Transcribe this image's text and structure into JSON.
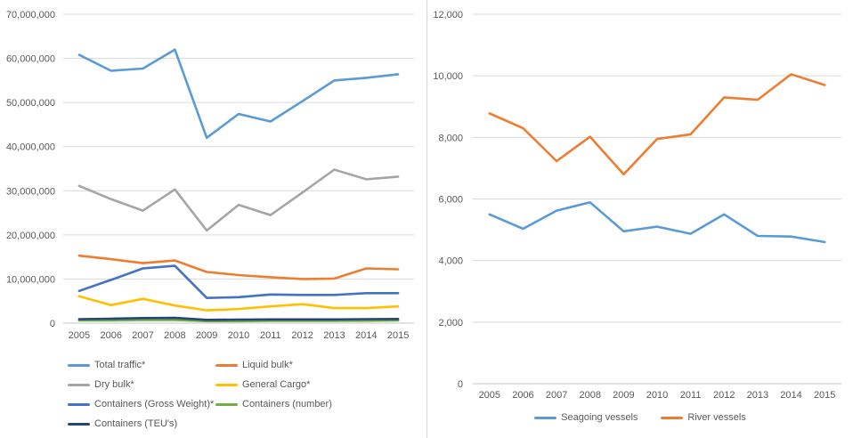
{
  "palette": {
    "background": "#FFFFFF",
    "grid": "#D9D9D9",
    "axis": "#C6C6C6",
    "text": "#595959",
    "divider": "#D9D9D9"
  },
  "chart_data": [
    {
      "type": "line",
      "title": "",
      "categories": [
        "2005",
        "2006",
        "2007",
        "2008",
        "2009",
        "2010",
        "2011",
        "2012",
        "2013",
        "2014",
        "2015"
      ],
      "series": [
        {
          "name": "Total traffic*",
          "color": "#5B9BD5",
          "values": [
            60800000,
            57200000,
            57700000,
            62000000,
            42000000,
            47400000,
            45700000,
            50300000,
            55000000,
            55600000,
            56400000
          ]
        },
        {
          "name": "Liquid bulk*",
          "color": "#ED7D31",
          "values": [
            15300000,
            14500000,
            13600000,
            14200000,
            11600000,
            10900000,
            10400000,
            10000000,
            10100000,
            12400000,
            12200000
          ]
        },
        {
          "name": "Dry bulk*",
          "color": "#A5A5A5",
          "values": [
            31100000,
            28100000,
            25500000,
            30300000,
            21000000,
            26800000,
            24500000,
            29600000,
            34800000,
            32600000,
            33200000
          ]
        },
        {
          "name": "General Cargo*",
          "color": "#FFC000",
          "values": [
            6100000,
            4100000,
            5500000,
            4000000,
            2900000,
            3200000,
            3800000,
            4300000,
            3400000,
            3400000,
            3800000
          ]
        },
        {
          "name": "Containers (Gross Weight)*",
          "color": "#4472C4",
          "values": [
            7300000,
            9800000,
            12400000,
            13000000,
            5700000,
            5900000,
            6500000,
            6400000,
            6400000,
            6800000,
            6800000
          ]
        },
        {
          "name": "Containers (number)",
          "color": "#70AD47",
          "values": [
            600000,
            600000,
            700000,
            700000,
            450000,
            450000,
            500000,
            500000,
            500000,
            550000,
            600000
          ]
        },
        {
          "name": "Containers (TEU's)",
          "color": "#264478",
          "values": [
            900000,
            1000000,
            1150000,
            1200000,
            750000,
            800000,
            850000,
            850000,
            850000,
            900000,
            950000
          ]
        }
      ],
      "ylim": [
        0,
        70000000
      ],
      "ytick_step": 10000000,
      "xlabel": "",
      "ylabel": "",
      "grid": true,
      "legend_position": "bottom-left-two-columns"
    },
    {
      "type": "line",
      "title": "",
      "categories": [
        "2005",
        "2006",
        "2007",
        "2008",
        "2009",
        "2010",
        "2011",
        "2012",
        "2013",
        "2014",
        "2015"
      ],
      "series": [
        {
          "name": "Seagoing vessels",
          "color": "#5B9BD5",
          "values": [
            5500,
            5030,
            5620,
            5890,
            4950,
            5100,
            4870,
            5500,
            4800,
            4780,
            4600
          ]
        },
        {
          "name": "River vessels",
          "color": "#ED7D31",
          "values": [
            8780,
            8300,
            7230,
            8020,
            6800,
            7950,
            8100,
            9300,
            9220,
            10050,
            9700
          ]
        }
      ],
      "ylim": [
        0,
        12000
      ],
      "ytick_step": 2000,
      "xlabel": "",
      "ylabel": "",
      "grid": true,
      "legend_position": "bottom-center"
    }
  ]
}
